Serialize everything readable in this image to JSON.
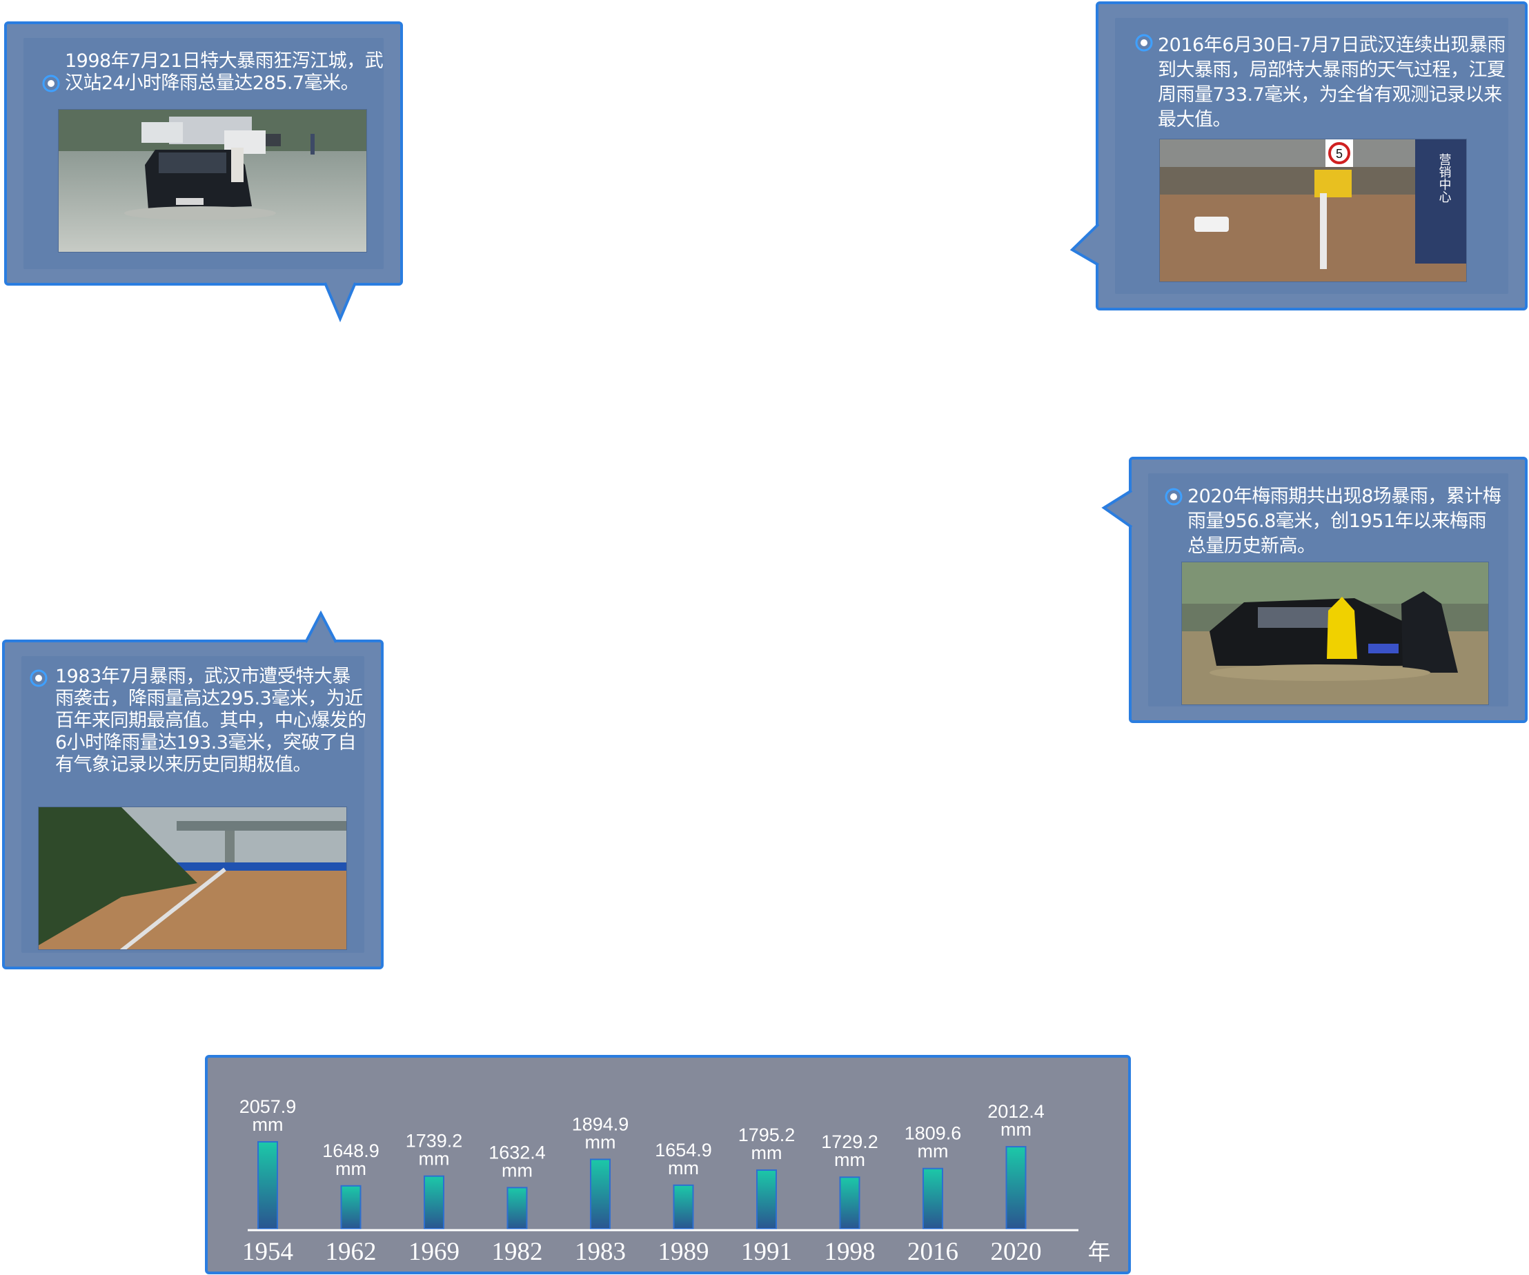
{
  "cards": {
    "c1998": {
      "text": "1998年7月21日特大暴雨狂泻江城，武汉站24小时降雨总量达285.7毫米。"
    },
    "c2016": {
      "text": "2016年6月30日-7月7日武汉连续出现暴雨到大暴雨，局部特大暴雨的天气过程，江夏周雨量733.7毫米，为全省有观测记录以来最大值。"
    },
    "c2020": {
      "text": "2020年梅雨期共出现8场暴雨，累计梅雨量956.8毫米，创1951年以来梅雨总量历史新高。"
    },
    "c1983": {
      "text": "1983年7月暴雨，武汉市遭受特大暴雨袭击，降雨量高达295.3毫米，为近百年来同期最高值。其中，中心爆发的6小时降雨量达193.3毫米，突破了自有气象记录以来历史同期极值。"
    }
  },
  "photo_signs": {
    "speed_sign": "5",
    "building_sign": "营销中心"
  },
  "colors": {
    "card_border": "#2a7de0",
    "card_bg": "#6180ad",
    "panel_bg": "#858a9a",
    "bar_top": "#1cc8a8",
    "bar_bottom": "#2a5590"
  },
  "chart_data": {
    "type": "bar",
    "categories": [
      "1954",
      "1962",
      "1969",
      "1982",
      "1983",
      "1989",
      "1991",
      "1998",
      "2016",
      "2020"
    ],
    "values": [
      2057.9,
      1648.9,
      1739.2,
      1632.4,
      1894.9,
      1654.9,
      1795.2,
      1729.2,
      1809.6,
      2012.4
    ],
    "value_labels": [
      "2057.9",
      "1648.9",
      "1739.2",
      "1632.4",
      "1894.9",
      "1654.9",
      "1795.2",
      "1729.2",
      "1809.6",
      "2012.4"
    ],
    "unit": "mm",
    "x_unit": "年",
    "ylim": [
      1250,
      2250
    ],
    "grid": false
  }
}
